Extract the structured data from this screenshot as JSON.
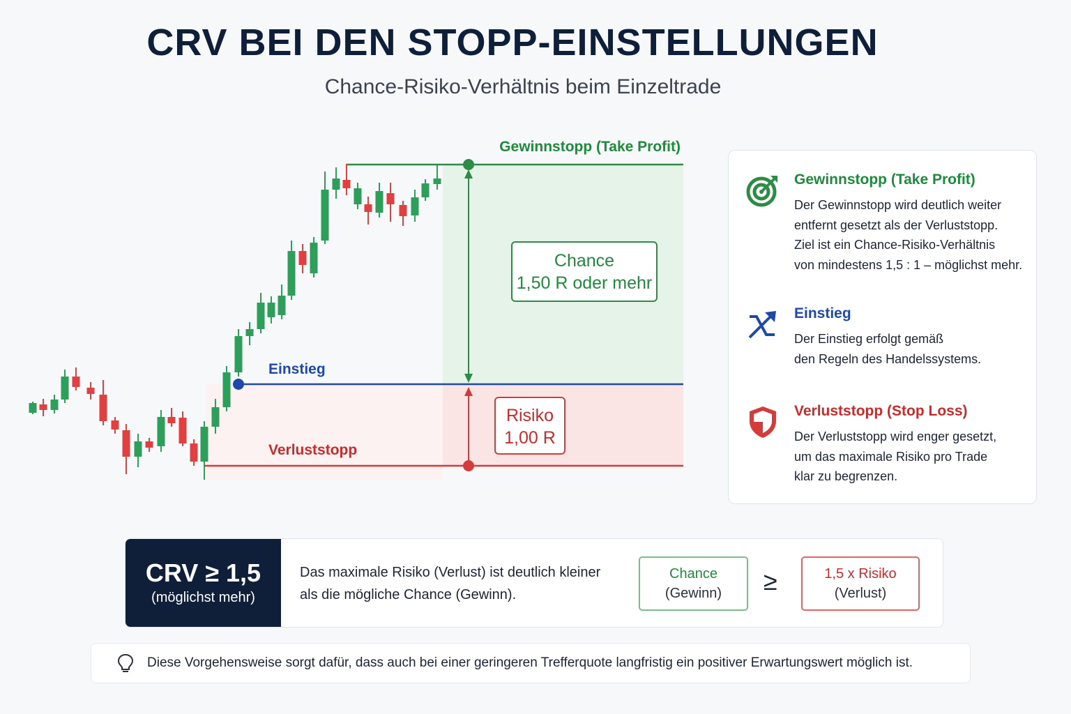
{
  "header": {
    "title": "CRV BEI DEN STOPP-EINSTELLUNGEN",
    "subtitle": "Chance-Risiko-Verhältnis beim Einzeltrade"
  },
  "diagram": {
    "take_profit_label": "Gewinnstopp (Take Profit)",
    "entry_label": "Einstieg",
    "stop_loss_label": "Verluststopp",
    "chance_box": {
      "line1": "Chance",
      "line2": "1,50 R oder mehr"
    },
    "risk_box": {
      "line1": "Risiko",
      "line2": "1,00 R"
    },
    "colors": {
      "bull": "#2e9e5b",
      "bear": "#e0403f",
      "tp": "#2e8b45",
      "entry": "#1f49a8",
      "sl": "#d63a3a"
    }
  },
  "info": {
    "items": [
      {
        "icon": "target-icon",
        "heading": "Gewinnstopp (Take Profit)",
        "lines": [
          "Der Gewinnstopp wird deutlich weiter",
          "entfernt gesetzt als der Verluststopp.",
          "Ziel ist ein Chance-Risiko-Verhältnis",
          "von mindestens 1,5 : 1 – möglichst mehr."
        ]
      },
      {
        "icon": "entry-arrow-icon",
        "heading": "Einstieg",
        "lines": [
          "Der Einstieg erfolgt gemäß",
          "den Regeln des Handelssystems."
        ]
      },
      {
        "icon": "shield-icon",
        "heading": "Verluststopp (Stop Loss)",
        "lines": [
          "Der Verluststopp wird enger gesetzt,",
          "um das maximale Risiko pro Trade",
          "klar zu begrenzen."
        ]
      }
    ]
  },
  "crv": {
    "main": "CRV ≥ 1,5",
    "sub": "(möglichst mehr)",
    "text_line1": "Das maximale Risiko (Verlust) ist deutlich kleiner",
    "text_line2": "als die mögliche Chance (Gewinn).",
    "chance_label": "Chance",
    "chance_sub": "(Gewinn)",
    "geq": "≥",
    "risk_label": "1,5 x Risiko",
    "risk_sub": "(Verlust)"
  },
  "note": {
    "icon": "lightbulb-icon",
    "text": "Diese Vorgehensweise sorgt dafür, dass auch bei einer geringeren Trefferquote langfristig ein positiver Erwartungswert möglich ist."
  }
}
